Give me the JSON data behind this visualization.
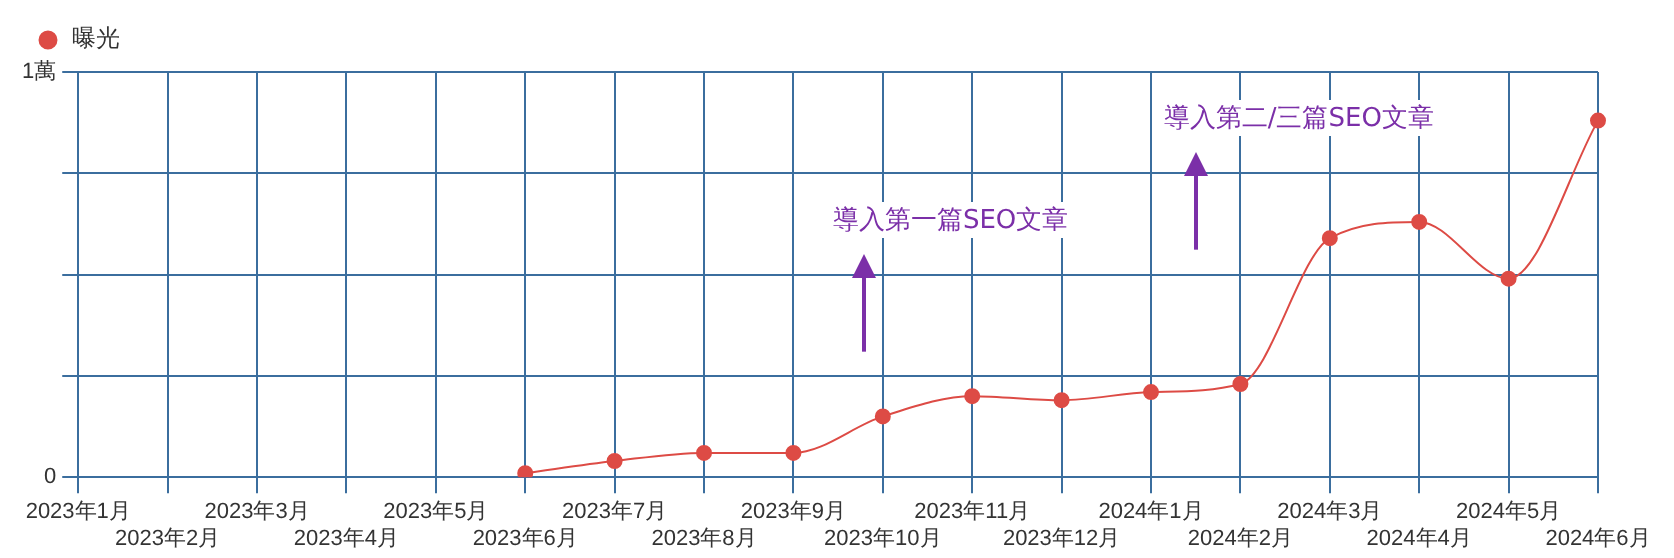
{
  "chart_data": {
    "type": "line",
    "categories": [
      "2023年1月",
      "2023年2月",
      "2023年3月",
      "2023年4月",
      "2023年5月",
      "2023年6月",
      "2023年7月",
      "2023年8月",
      "2023年9月",
      "2023年10月",
      "2023年11月",
      "2023年12月",
      "2024年1月",
      "2024年2月",
      "2024年3月",
      "2024年4月",
      "2024年5月",
      "2024年6月"
    ],
    "series": [
      {
        "name": "曝光",
        "color": "#dd4b45",
        "values": [
          null,
          null,
          null,
          null,
          null,
          0.01,
          0.04,
          0.06,
          0.06,
          0.15,
          0.2,
          0.19,
          0.21,
          0.23,
          0.59,
          0.63,
          0.49,
          0.88
        ]
      }
    ],
    "ylim": [
      0,
      1
    ],
    "yticks": [
      0,
      {
        "value": 0.25,
        "label": null
      },
      {
        "value": 0.5,
        "label": null
      },
      {
        "value": 0.75,
        "label": null
      },
      {
        "value": 1,
        "label": "1萬"
      }
    ],
    "grid": true,
    "legend": "top left",
    "marker": "circle",
    "line_style": "solid",
    "annotations": [
      "導入第一篇SEO文章",
      "導入第二/三篇SEO文章"
    ]
  }
}
